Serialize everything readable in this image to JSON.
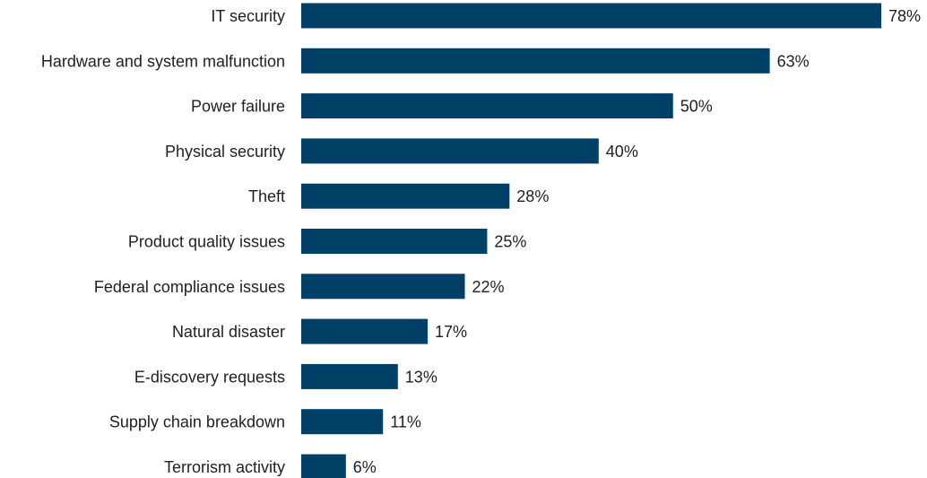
{
  "chart_data": {
    "type": "bar",
    "orientation": "horizontal",
    "title": "",
    "xlabel": "",
    "ylabel": "",
    "categories": [
      "IT security",
      "Hardware and system malfunction",
      "Power failure",
      "Physical security",
      "Theft",
      "Product quality issues",
      "Federal compliance issues",
      "Natural disaster",
      "E-discovery requests",
      "Supply chain breakdown",
      "Terrorism activity"
    ],
    "values": [
      78,
      63,
      50,
      40,
      28,
      25,
      22,
      17,
      13,
      11,
      6
    ],
    "value_labels": [
      "78%",
      "63%",
      "50%",
      "40%",
      "28%",
      "25%",
      "22%",
      "17%",
      "13%",
      "11%",
      "6%"
    ],
    "xlim": [
      0,
      78
    ],
    "grid": false,
    "legend": "none",
    "bar_color": "#003f66"
  }
}
